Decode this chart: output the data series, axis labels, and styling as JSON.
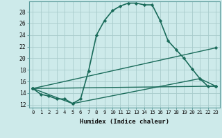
{
  "title": "",
  "xlabel": "Humidex (Indice chaleur)",
  "background_color": "#cdeaea",
  "grid_color": "#a8cccc",
  "line_color": "#1a6b5a",
  "xlim": [
    -0.5,
    23.5
  ],
  "ylim": [
    11.5,
    29.8
  ],
  "xticks": [
    0,
    1,
    2,
    3,
    4,
    5,
    6,
    7,
    8,
    9,
    10,
    11,
    12,
    13,
    14,
    15,
    16,
    17,
    18,
    19,
    20,
    21,
    22,
    23
  ],
  "yticks": [
    12,
    14,
    16,
    18,
    20,
    22,
    24,
    26,
    28
  ],
  "series": [
    {
      "x": [
        0,
        1,
        2,
        3,
        4,
        5,
        6,
        7,
        8,
        9,
        10,
        11,
        12,
        13,
        14,
        15,
        16,
        17,
        18,
        19,
        20,
        21,
        22,
        23
      ],
      "y": [
        14.8,
        13.8,
        13.5,
        13.0,
        13.0,
        12.2,
        13.0,
        17.8,
        24.0,
        26.5,
        28.2,
        29.0,
        29.5,
        29.5,
        29.2,
        29.2,
        26.5,
        23.0,
        21.5,
        20.0,
        18.2,
        16.5,
        15.2,
        15.2
      ],
      "linewidth": 1.2
    },
    {
      "x": [
        0,
        5,
        21,
        23
      ],
      "y": [
        14.8,
        12.2,
        16.5,
        15.2
      ],
      "linewidth": 1.0
    },
    {
      "x": [
        0,
        23
      ],
      "y": [
        14.8,
        15.2
      ],
      "linewidth": 1.0
    },
    {
      "x": [
        0,
        23
      ],
      "y": [
        14.8,
        21.8
      ],
      "linewidth": 1.0
    }
  ]
}
